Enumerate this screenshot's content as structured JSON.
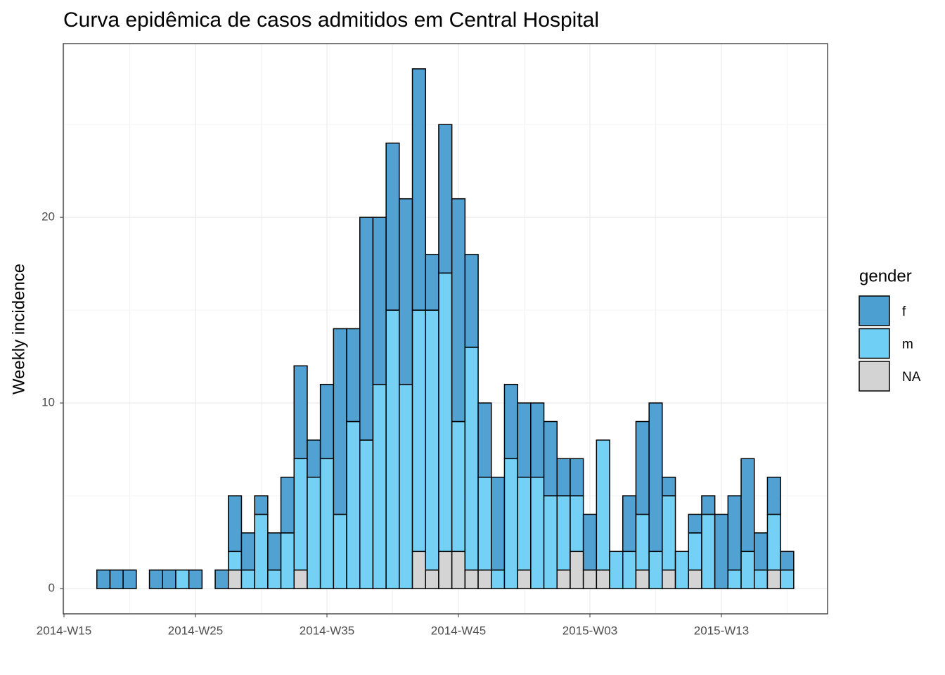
{
  "chart_data": {
    "type": "bar",
    "stacked": true,
    "title": "Curva epidêmica de casos admitidos em Central Hospital",
    "y_label": "Weekly incidence",
    "legend_title": "gender",
    "categories": [
      "2014-W15",
      null,
      null,
      null,
      null,
      null,
      null,
      null,
      null,
      null,
      "2014-W25",
      null,
      null,
      null,
      null,
      null,
      null,
      null,
      null,
      null,
      "2014-W35",
      null,
      null,
      null,
      null,
      null,
      null,
      null,
      null,
      null,
      "2014-W45",
      null,
      null,
      null,
      null,
      null,
      null,
      null,
      null,
      null,
      "2015-W03",
      null,
      null,
      null,
      null,
      null,
      null,
      null,
      null,
      null,
      "2015-W13",
      null,
      null,
      null,
      null,
      null
    ],
    "series": [
      {
        "name": "f",
        "color": "#4b9fd1",
        "values": [
          null,
          null,
          null,
          1,
          1,
          1,
          null,
          1,
          1,
          null,
          1,
          null,
          1,
          3,
          2,
          1,
          2,
          3,
          5,
          2,
          4,
          10,
          5,
          12,
          9,
          9,
          10,
          13,
          3,
          8,
          12,
          5,
          4,
          5,
          4,
          4,
          4,
          4,
          2,
          2,
          3,
          null,
          null,
          3,
          5,
          8,
          1,
          null,
          1,
          1,
          4,
          4,
          5,
          2,
          2,
          1
        ]
      },
      {
        "name": "m",
        "color": "#6fcff5",
        "values": [
          null,
          null,
          null,
          null,
          null,
          null,
          null,
          null,
          null,
          1,
          null,
          null,
          null,
          1,
          1,
          4,
          1,
          3,
          6,
          6,
          7,
          4,
          9,
          8,
          11,
          15,
          11,
          13,
          14,
          15,
          7,
          12,
          5,
          1,
          7,
          5,
          6,
          5,
          4,
          3,
          null,
          7,
          2,
          2,
          3,
          2,
          4,
          2,
          2,
          4,
          null,
          1,
          2,
          1,
          3,
          1
        ]
      },
      {
        "name": "NA",
        "color": "#d3d3d3",
        "values": [
          null,
          null,
          null,
          null,
          null,
          null,
          null,
          null,
          null,
          null,
          null,
          null,
          null,
          1,
          null,
          null,
          null,
          null,
          1,
          null,
          null,
          null,
          null,
          null,
          null,
          null,
          null,
          2,
          1,
          2,
          2,
          1,
          1,
          null,
          null,
          1,
          null,
          null,
          1,
          2,
          1,
          1,
          null,
          null,
          1,
          null,
          1,
          null,
          1,
          null,
          null,
          null,
          null,
          null,
          1,
          null
        ]
      }
    ],
    "ylim": [
      -1.36,
      29.36
    ],
    "yticks": [
      0,
      10,
      20
    ],
    "grid": true
  }
}
